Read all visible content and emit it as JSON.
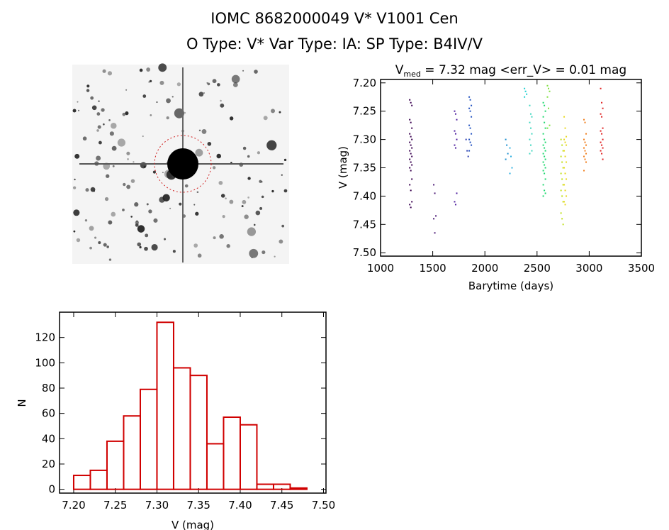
{
  "title": {
    "line1": "IOMC 8682000049    V* V1001 Cen",
    "line2": "O Type: V*  Var Type: IA:  SP Type: B4IV/V"
  },
  "colors": {
    "axis": "#000000",
    "hist": "#d00000",
    "circle": "#d02020"
  },
  "chart_data": [
    {
      "type": "scatter",
      "title_main": "V",
      "title_sub": "med",
      "title_rest": " = 7.32 mag <err_V> = 0.01 mag",
      "xlabel": "Barytime (days)",
      "ylabel": "V (mag)",
      "xlim": [
        1000,
        3500
      ],
      "ylim": [
        7.506,
        7.194
      ],
      "y_reversed": true,
      "xticks": [
        "1000",
        "1500",
        "2000",
        "2500",
        "3000",
        "3500"
      ],
      "yticks": [
        "7.20",
        "7.25",
        "7.30",
        "7.35",
        "7.40",
        "7.45",
        "7.50"
      ],
      "series": [
        {
          "x": 1290,
          "color": "#3a0050",
          "y": [
            7.23,
            7.235,
            7.24,
            7.265,
            7.27,
            7.28,
            7.29,
            7.295,
            7.3,
            7.305,
            7.31,
            7.315,
            7.32,
            7.325,
            7.33,
            7.335,
            7.34,
            7.345,
            7.35,
            7.355,
            7.37,
            7.38,
            7.39,
            7.41,
            7.415,
            7.42
          ]
        },
        {
          "x": 1520,
          "color": "#50207a",
          "y": [
            7.38,
            7.395,
            7.435,
            7.44,
            7.465
          ]
        },
        {
          "x": 1720,
          "color": "#5020a0",
          "y": [
            7.25,
            7.255,
            7.265,
            7.285,
            7.29,
            7.3,
            7.31,
            7.315,
            7.395,
            7.41,
            7.415
          ]
        },
        {
          "x": 1830,
          "color": "#3040b0",
          "y": [
            7.3,
            7.32,
            7.33
          ]
        },
        {
          "x": 1860,
          "color": "#2050c0",
          "y": [
            7.225,
            7.23,
            7.24,
            7.245,
            7.25,
            7.26,
            7.275,
            7.28,
            7.29,
            7.3,
            7.305,
            7.31,
            7.32
          ]
        },
        {
          "x": 2210,
          "color": "#2090d0",
          "y": [
            7.3,
            7.31,
            7.325,
            7.335
          ]
        },
        {
          "x": 2250,
          "color": "#30b0e0",
          "y": [
            7.315,
            7.33,
            7.35,
            7.36
          ]
        },
        {
          "x": 2390,
          "color": "#20d0d0",
          "y": [
            7.21,
            7.215,
            7.22,
            7.225
          ]
        },
        {
          "x": 2440,
          "color": "#40d8c0",
          "y": [
            7.24,
            7.255,
            7.26,
            7.27,
            7.28,
            7.29,
            7.3,
            7.31,
            7.32,
            7.325
          ]
        },
        {
          "x": 2570,
          "color": "#20d870",
          "y": [
            7.235,
            7.24,
            7.25,
            7.26,
            7.27,
            7.28,
            7.29,
            7.3,
            7.305,
            7.31,
            7.315,
            7.32,
            7.325,
            7.33,
            7.335,
            7.34,
            7.345,
            7.35,
            7.355,
            7.36,
            7.37,
            7.38,
            7.39,
            7.395,
            7.4
          ]
        },
        {
          "x": 2610,
          "color": "#80e040",
          "y": [
            7.205,
            7.21,
            7.215,
            7.225,
            7.245,
            7.275,
            7.28
          ]
        },
        {
          "x": 2740,
          "color": "#c0e020",
          "y": [
            7.3,
            7.31,
            7.32,
            7.33,
            7.34,
            7.35,
            7.36,
            7.37,
            7.38,
            7.39,
            7.4,
            7.41,
            7.43,
            7.44,
            7.45
          ]
        },
        {
          "x": 2770,
          "color": "#e8d820",
          "y": [
            7.26,
            7.28,
            7.295,
            7.3,
            7.305,
            7.31,
            7.32,
            7.33,
            7.34,
            7.35,
            7.36,
            7.37,
            7.38,
            7.39,
            7.4,
            7.41,
            7.415
          ]
        },
        {
          "x": 2960,
          "color": "#f08020",
          "y": [
            7.265,
            7.27,
            7.29,
            7.3,
            7.305,
            7.31,
            7.315,
            7.32,
            7.325,
            7.33,
            7.335,
            7.34,
            7.355
          ]
        },
        {
          "x": 3120,
          "color": "#e02020",
          "y": [
            7.21,
            7.235,
            7.245,
            7.255,
            7.26,
            7.28,
            7.285,
            7.29,
            7.3,
            7.305,
            7.31,
            7.315,
            7.32,
            7.325,
            7.335
          ]
        }
      ]
    },
    {
      "type": "bar",
      "xlabel": "V (mag)",
      "ylabel": "N",
      "xlim": [
        7.183,
        7.503
      ],
      "ylim": [
        -3,
        140
      ],
      "xticks": [
        "7.20",
        "7.25",
        "7.30",
        "7.35",
        "7.40",
        "7.45",
        "7.50"
      ],
      "yticks": [
        "0",
        "20",
        "40",
        "60",
        "80",
        "100",
        "120"
      ],
      "bin_edges": [
        7.2,
        7.22,
        7.24,
        7.26,
        7.28,
        7.3,
        7.32,
        7.34,
        7.36,
        7.38,
        7.4,
        7.42,
        7.44,
        7.46,
        7.48
      ],
      "values": [
        11,
        15,
        38,
        58,
        79,
        132,
        96,
        90,
        36,
        57,
        51,
        4,
        4,
        1
      ]
    }
  ]
}
